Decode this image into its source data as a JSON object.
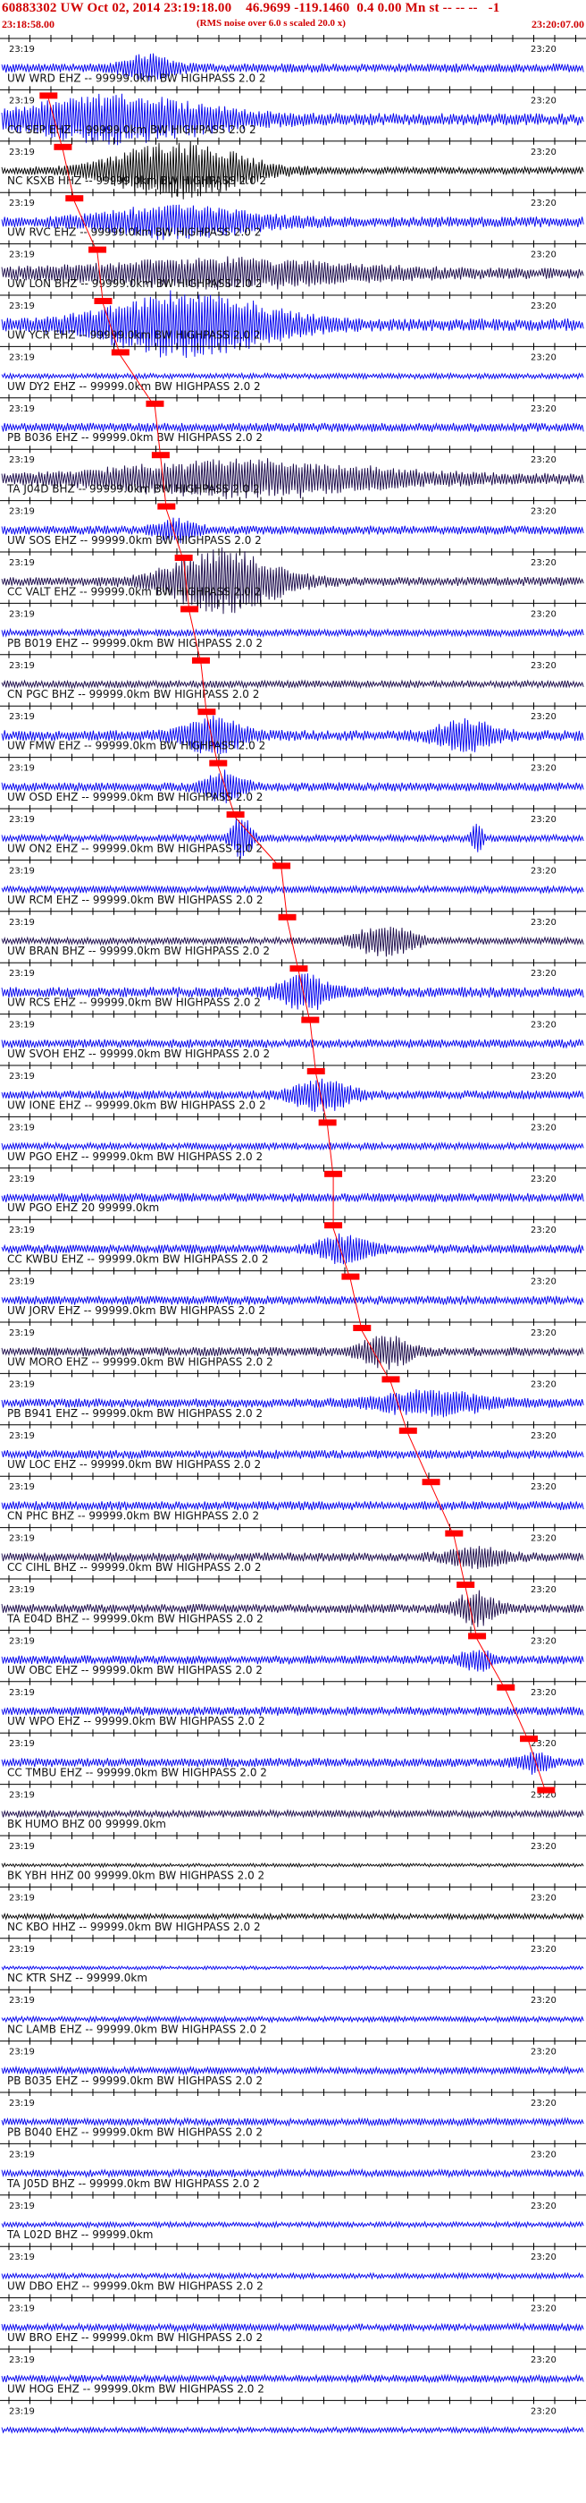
{
  "header": {
    "title": "60883302 UW Oct 02, 2014 23:19:18.00    46.9699 -119.1460  0.4 0.00 Mn st -- -- --   -1",
    "start_time": "23:18:58.00",
    "note": "(RMS noise over 6.0 s scaled 20.0 x)",
    "end_time": "23:20:07.00"
  },
  "chart_data": {
    "type": "line",
    "tick_labels": {
      "left": "23:19",
      "right": "23:20"
    },
    "colors": {
      "red": "#ff0000",
      "blue": "#0000ee",
      "dark": "#1a0a4a",
      "black": "#000000"
    },
    "traces": [
      {
        "label": "",
        "color": "blue",
        "amp": 5,
        "events": [
          {
            "at": 0.25,
            "amp": 14,
            "w": 0.05
          }
        ]
      },
      {
        "label": "UW WRD EHZ -- 99999.0km BW  HIGHPASS  2.0  2",
        "color": "blue",
        "amp": 7,
        "pick": 0.075,
        "events": [
          {
            "at": 0.2,
            "amp": 24,
            "w": 0.2
          }
        ]
      },
      {
        "label": "CC SEP EHZ -- 99999.0km BW  HIGHPASS  2.0  2",
        "color": "black",
        "amp": 4,
        "pick": 0.1,
        "events": [
          {
            "at": 0.3,
            "amp": 32,
            "w": 0.14
          }
        ]
      },
      {
        "label": "NC KSXB HHZ -- 99999.0km BW  HIGHPASS  2.0  2",
        "color": "blue",
        "amp": 6,
        "pick": 0.12,
        "events": [
          {
            "at": 0.3,
            "amp": 16,
            "w": 0.16
          }
        ]
      },
      {
        "label": "UW RVC EHZ -- 99999.0km BW  HIGHPASS  2.0  2",
        "color": "dark",
        "amp": 6,
        "pick": 0.16,
        "events": [
          {
            "at": 0.38,
            "amp": 14,
            "w": 0.3
          }
        ]
      },
      {
        "label": "UW LON BHZ -- 99999.0km BW  HIGHPASS  2.0  2",
        "color": "blue",
        "amp": 7,
        "pick": 0.17,
        "events": [
          {
            "at": 0.32,
            "amp": 34,
            "w": 0.18
          }
        ]
      },
      {
        "label": "UW YCR EHZ -- 99999.0km BW  HIGHPASS  2.0  2",
        "color": "blue",
        "amp": 3,
        "pick": 0.2,
        "events": []
      },
      {
        "label": "UW DY2 EHZ -- 99999.0km BW  HIGHPASS  2.0  2",
        "color": "blue",
        "amp": 5,
        "pick": 0.26,
        "events": []
      },
      {
        "label": "PB B036 EHZ -- 99999.0km BW  HIGHPASS  2.0  2",
        "color": "dark",
        "amp": 6,
        "pick": 0.27,
        "events": [
          {
            "at": 0.42,
            "amp": 18,
            "w": 0.3
          }
        ]
      },
      {
        "label": "TA J04D BHZ -- 99999.0km BW  HIGHPASS  2.0  2",
        "color": "blue",
        "amp": 5,
        "pick": 0.28,
        "events": [
          {
            "at": 0.3,
            "amp": 12,
            "w": 0.04
          }
        ]
      },
      {
        "label": "UW SOS EHZ -- 99999.0km BW  HIGHPASS  2.0  2",
        "color": "dark",
        "amp": 5,
        "pick": 0.31,
        "events": [
          {
            "at": 0.38,
            "amp": 34,
            "w": 0.12
          }
        ]
      },
      {
        "label": "CC VALT EHZ -- 99999.0km BW  HIGHPASS  2.0  2",
        "color": "blue",
        "amp": 4,
        "pick": 0.32,
        "events": []
      },
      {
        "label": "PB B019 EHZ -- 99999.0km BW  HIGHPASS  2.0  2",
        "color": "dark",
        "amp": 4,
        "pick": 0.34,
        "events": []
      },
      {
        "label": "CN PGC BHZ -- 99999.0km BW  HIGHPASS  2.0  2",
        "color": "blue",
        "amp": 6,
        "pick": 0.35,
        "events": [
          {
            "at": 0.36,
            "amp": 20,
            "w": 0.06
          },
          {
            "at": 0.8,
            "amp": 16,
            "w": 0.06
          }
        ]
      },
      {
        "label": "UW FMW EHZ -- 99999.0km BW  HIGHPASS  2.0  2",
        "color": "blue",
        "amp": 5,
        "pick": 0.37,
        "events": [
          {
            "at": 0.38,
            "amp": 16,
            "w": 0.04
          }
        ]
      },
      {
        "label": "UW OSD EHZ -- 99999.0km BW  HIGHPASS  2.0  2",
        "color": "blue",
        "amp": 4,
        "pick": 0.4,
        "events": [
          {
            "at": 0.41,
            "amp": 26,
            "w": 0.02
          },
          {
            "at": 0.82,
            "amp": 18,
            "w": 0.01
          }
        ]
      },
      {
        "label": "UW ON2 EHZ -- 99999.0km BW  HIGHPASS  2.0  2",
        "color": "blue",
        "amp": 4,
        "pick": 0.48,
        "events": []
      },
      {
        "label": "UW RCM EHZ -- 99999.0km BW  HIGHPASS  2.0  2",
        "color": "dark",
        "amp": 4,
        "pick": 0.49,
        "events": [
          {
            "at": 0.66,
            "amp": 16,
            "w": 0.06
          }
        ]
      },
      {
        "label": "UW BRAN BHZ -- 99999.0km BW  HIGHPASS  2.0  2",
        "color": "blue",
        "amp": 6,
        "pick": 0.51,
        "events": [
          {
            "at": 0.52,
            "amp": 18,
            "w": 0.05
          }
        ]
      },
      {
        "label": "UW RCS EHZ -- 99999.0km BW  HIGHPASS  2.0  2",
        "color": "blue",
        "amp": 5,
        "pick": 0.53,
        "events": []
      },
      {
        "label": "UW SVOH EHZ -- 99999.0km BW  HIGHPASS  2.0  2",
        "color": "blue",
        "amp": 5,
        "pick": 0.54,
        "events": [
          {
            "at": 0.55,
            "amp": 16,
            "w": 0.06
          }
        ]
      },
      {
        "label": "UW IONE EHZ -- 99999.0km BW  HIGHPASS  2.0  2",
        "color": "blue",
        "amp": 4,
        "pick": 0.56,
        "events": []
      },
      {
        "label": "UW PGO EHZ -- 99999.0km BW  HIGHPASS  2.0  2",
        "color": "blue",
        "amp": 5,
        "pick": 0.57,
        "events": []
      },
      {
        "label": "UW PGO EHZ 20 99999.0km",
        "color": "blue",
        "amp": 5,
        "pick": 0.57,
        "events": [
          {
            "at": 0.59,
            "amp": 16,
            "w": 0.05
          }
        ]
      },
      {
        "label": "CC KWBU EHZ -- 99999.0km BW  HIGHPASS  2.0  2",
        "color": "blue",
        "amp": 5,
        "pick": 0.6,
        "events": []
      },
      {
        "label": "UW JORV EHZ -- 99999.0km BW  HIGHPASS  2.0  2",
        "color": "dark",
        "amp": 5,
        "pick": 0.62,
        "events": [
          {
            "at": 0.66,
            "amp": 18,
            "w": 0.05
          }
        ]
      },
      {
        "label": "UW MORO EHZ -- 99999.0km BW  HIGHPASS  2.0  2",
        "color": "blue",
        "amp": 5,
        "pick": 0.67,
        "events": [
          {
            "at": 0.74,
            "amp": 12,
            "w": 0.12
          }
        ]
      },
      {
        "label": "PB B941 EHZ -- 99999.0km BW  HIGHPASS  2.0  2",
        "color": "blue",
        "amp": 5,
        "pick": 0.7,
        "events": []
      },
      {
        "label": "UW LOC EHZ -- 99999.0km BW  HIGHPASS  2.0  2",
        "color": "blue",
        "amp": 5,
        "pick": 0.74,
        "events": []
      },
      {
        "label": "CN PHC BHZ -- 99999.0km BW  HIGHPASS  2.0  2",
        "color": "dark",
        "amp": 5,
        "pick": 0.78,
        "events": [
          {
            "at": 0.82,
            "amp": 10,
            "w": 0.06
          }
        ]
      },
      {
        "label": "CC CIHL BHZ -- 99999.0km BW  HIGHPASS  2.0  2",
        "color": "dark",
        "amp": 5,
        "pick": 0.8,
        "events": [
          {
            "at": 0.82,
            "amp": 18,
            "w": 0.04
          }
        ]
      },
      {
        "label": "TA E04D BHZ -- 99999.0km BW  HIGHPASS  2.0  2",
        "color": "blue",
        "amp": 5,
        "pick": 0.82,
        "events": [
          {
            "at": 0.82,
            "amp": 12,
            "w": 0.03
          }
        ]
      },
      {
        "label": "UW OBC EHZ -- 99999.0km BW  HIGHPASS  2.0  2",
        "color": "blue",
        "amp": 5,
        "pick": 0.87,
        "events": []
      },
      {
        "label": "UW WPO EHZ -- 99999.0km BW  HIGHPASS  2.0  2",
        "color": "blue",
        "amp": 5,
        "pick": 0.91,
        "events": [
          {
            "at": 0.92,
            "amp": 10,
            "w": 0.03
          }
        ]
      },
      {
        "label": "CC TMBU EHZ -- 99999.0km BW  HIGHPASS  2.0  2",
        "color": "dark",
        "amp": 4,
        "pick": 0.94,
        "events": []
      },
      {
        "label": "BK HUMO BHZ 00 99999.0km",
        "color": "black",
        "amp": 2,
        "events": []
      },
      {
        "label": "BK YBH HHZ 00 99999.0km BW  HIGHPASS  2.0  2",
        "color": "black",
        "amp": 3,
        "events": []
      },
      {
        "label": "NC KBO HHZ -- 99999.0km BW  HIGHPASS  2.0  2",
        "color": "blue",
        "amp": 2,
        "events": []
      },
      {
        "label": "NC KTR SHZ -- 99999.0km",
        "color": "blue",
        "amp": 3,
        "events": []
      },
      {
        "label": "NC LAMB EHZ -- 99999.0km BW  HIGHPASS  2.0  2",
        "color": "blue",
        "amp": 4,
        "events": []
      },
      {
        "label": "PB B035 EHZ -- 99999.0km BW  HIGHPASS  2.0  2",
        "color": "blue",
        "amp": 4,
        "events": []
      },
      {
        "label": "PB B040 EHZ -- 99999.0km BW  HIGHPASS  2.0  2",
        "color": "blue",
        "amp": 4,
        "events": []
      },
      {
        "label": "TA J05D BHZ -- 99999.0km BW  HIGHPASS  2.0  2",
        "color": "blue",
        "amp": 3,
        "events": []
      },
      {
        "label": "TA L02D BHZ -- 99999.0km",
        "color": "blue",
        "amp": 3,
        "events": []
      },
      {
        "label": "UW DBO EHZ -- 99999.0km BW  HIGHPASS  2.0  2",
        "color": "blue",
        "amp": 4,
        "events": []
      },
      {
        "label": "UW BRO EHZ -- 99999.0km BW  HIGHPASS  2.0  2",
        "color": "blue",
        "amp": 4,
        "events": []
      },
      {
        "label": "UW HOG EHZ -- 99999.0km BW  HIGHPASS  2.0  2",
        "color": "blue",
        "amp": 3,
        "events": []
      }
    ]
  }
}
